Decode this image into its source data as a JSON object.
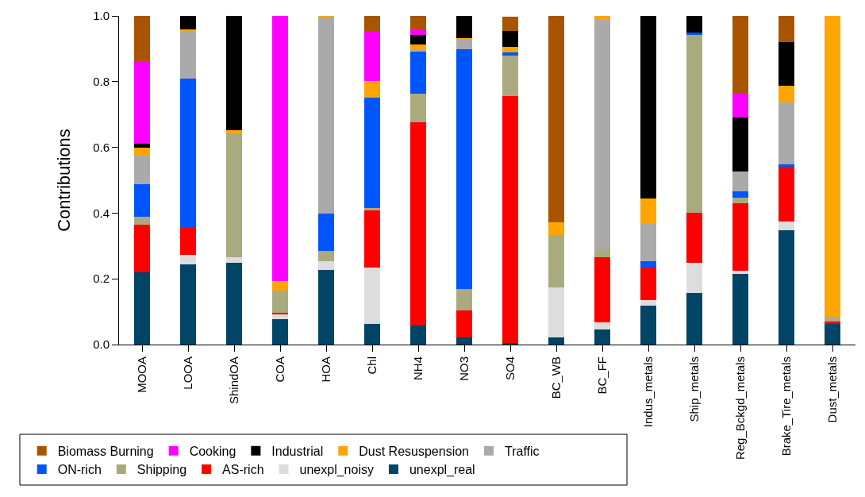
{
  "chart_data": {
    "type": "bar",
    "stacked": true,
    "ylabel": "Contributions",
    "categories": [
      "MOOA",
      "LOOA",
      "ShindOA",
      "COA",
      "HOA",
      "Chl",
      "NH4",
      "NO3",
      "SO4",
      "BC_WB",
      "BC_FF",
      "Indus_metals",
      "Ship_metals",
      "Reg_Bckgd_metals",
      "Brake_Tire_metals",
      "Dust_metals"
    ],
    "ylim": [
      0,
      1
    ],
    "yticks": [
      {
        "value": 0,
        "label": "0.0"
      },
      {
        "value": 0.2,
        "label": "0.2"
      },
      {
        "value": 0.4,
        "label": "0.4"
      },
      {
        "value": 0.6,
        "label": "0.6"
      },
      {
        "value": 0.8,
        "label": "0.8"
      },
      {
        "value": 1,
        "label": "1.0"
      }
    ],
    "grid": false,
    "legend": "bottom left",
    "series": [
      {
        "name": "unexpl_real",
        "color": "#004466",
        "values": [
          0.22,
          0.245,
          0.25,
          0.078,
          0.227,
          0.062,
          0.059,
          0.022,
          0.006,
          0.021,
          0.045,
          0.119,
          0.158,
          0.215,
          0.347,
          0.063
        ]
      },
      {
        "name": "unexpl_noisy",
        "color": "#dddddd",
        "values": [
          0,
          0.028,
          0.015,
          0.015,
          0.026,
          0.173,
          0,
          0,
          0,
          0.154,
          0.022,
          0.016,
          0.092,
          0.01,
          0.028,
          0
        ]
      },
      {
        "name": "AS-rich",
        "color": "#ff0000",
        "values": [
          0.145,
          0.082,
          0,
          0.004,
          0,
          0.173,
          0.618,
          0.082,
          0.75,
          0,
          0.199,
          0.099,
          0.152,
          0.204,
          0.166,
          0.006
        ]
      },
      {
        "name": "Shipping",
        "color": "#aaaa7f",
        "values": [
          0.025,
          0,
          0.377,
          0.068,
          0.033,
          0.007,
          0.086,
          0.064,
          0.123,
          0.158,
          0.024,
          0,
          0.54,
          0.017,
          0,
          0.007
        ]
      },
      {
        "name": "ON-rich",
        "color": "#0055ff",
        "values": [
          0.097,
          0.455,
          0,
          0,
          0.113,
          0.337,
          0.128,
          0.731,
          0.011,
          0,
          0,
          0.02,
          0.007,
          0.021,
          0.007,
          0
        ]
      },
      {
        "name": "Traffic",
        "color": "#aaaaaa",
        "values": [
          0.088,
          0.143,
          0,
          0,
          0.596,
          0,
          0.008,
          0.029,
          null,
          0,
          0.699,
          0.113,
          0,
          0.059,
          0.189,
          0.006
        ]
      },
      {
        "name": "Dust Resuspension",
        "color": "#ffa500",
        "values": [
          0.023,
          0.005,
          0.01,
          0.028,
          0.005,
          0.051,
          0.014,
          0.005,
          0.015,
          0.039,
          0.011,
          0.077,
          0,
          0,
          0.051,
          0.918
        ]
      },
      {
        "name": "Industrial",
        "color": "#000000",
        "values": [
          0.012,
          0.042,
          0.348,
          0,
          0,
          0,
          0.03,
          0.067,
          0.049,
          0,
          0,
          0.556,
          0.051,
          0.166,
          0.133,
          0
        ]
      },
      {
        "name": "Cooking",
        "color": "#ff00ff",
        "values": [
          0.252,
          0,
          0,
          0.807,
          0,
          0.15,
          0.013,
          0,
          0,
          0,
          0,
          0,
          0,
          0.074,
          0,
          0
        ]
      },
      {
        "name": "Biomass Burning",
        "color": "#a85400",
        "values": [
          0.138,
          0,
          0,
          0,
          0,
          0.047,
          0.044,
          0,
          0.043,
          0.628,
          0,
          0,
          0,
          0.234,
          0.079,
          0
        ]
      }
    ]
  }
}
